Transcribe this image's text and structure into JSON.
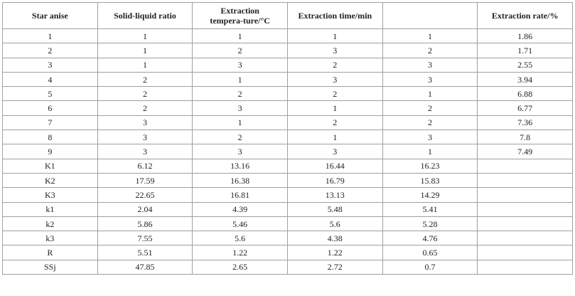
{
  "table": {
    "header": [
      "Star anise",
      "Solid-liquid ratio",
      "Extraction tempera-ture/°C",
      "Extraction time/min",
      null,
      "Extraction rate/%"
    ],
    "rows": [
      [
        1,
        1,
        1,
        1,
        1,
        1.86
      ],
      [
        2,
        1,
        2,
        3,
        2,
        1.71
      ],
      [
        3,
        1,
        3,
        2,
        3,
        2.55
      ],
      [
        4,
        2,
        1,
        3,
        3,
        3.94
      ],
      [
        5,
        2,
        2,
        2,
        1,
        6.88
      ],
      [
        6,
        2,
        3,
        1,
        2,
        6.77
      ],
      [
        7,
        3,
        1,
        2,
        2,
        7.36
      ],
      [
        8,
        3,
        2,
        1,
        3,
        7.8
      ],
      [
        9,
        3,
        3,
        3,
        1,
        7.49
      ],
      [
        "K1",
        6.12,
        13.16,
        16.44,
        16.23
      ],
      [
        "K2",
        17.59,
        16.38,
        16.79,
        15.83
      ],
      [
        "K3",
        22.65,
        16.81,
        13.13,
        14.29
      ],
      [
        "k1",
        2.04,
        4.39,
        5.48,
        5.41
      ],
      [
        "k2",
        5.86,
        5.46,
        5.6,
        5.28
      ],
      [
        "k3",
        7.55,
        5.6,
        4.38,
        4.76
      ],
      [
        "R",
        5.51,
        1.22,
        1.22,
        0.65
      ],
      [
        "SSj",
        47.85,
        2.65,
        2.72,
        0.7
      ]
    ]
  }
}
